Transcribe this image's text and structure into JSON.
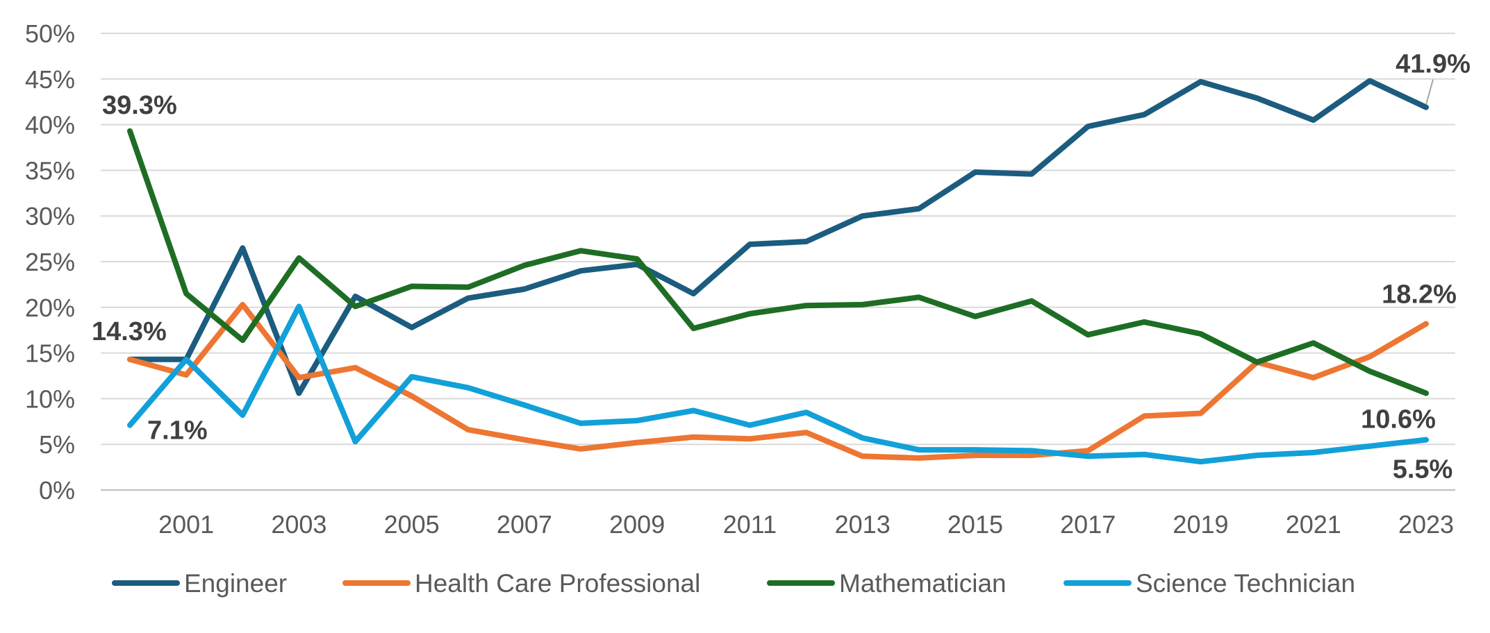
{
  "chart_data": {
    "type": "line",
    "x": [
      2000,
      2001,
      2002,
      2003,
      2004,
      2005,
      2006,
      2007,
      2008,
      2009,
      2010,
      2011,
      2012,
      2013,
      2014,
      2015,
      2016,
      2017,
      2018,
      2019,
      2020,
      2021,
      2022,
      2023
    ],
    "x_tick_labels": [
      "2001",
      "2003",
      "2005",
      "2007",
      "2009",
      "2011",
      "2013",
      "2015",
      "2017",
      "2019",
      "2021",
      "2023"
    ],
    "y_tick_labels": [
      "0%",
      "5%",
      "10%",
      "15%",
      "20%",
      "25%",
      "30%",
      "35%",
      "40%",
      "45%",
      "50%"
    ],
    "ylim": [
      0,
      50
    ],
    "y_unit": "%",
    "grid": true,
    "legend_position": "bottom",
    "series": [
      {
        "name": "Engineer",
        "color": "#1b5c7f",
        "values": [
          14.3,
          14.3,
          26.5,
          10.6,
          21.2,
          17.8,
          21.0,
          22.0,
          24.0,
          24.7,
          21.5,
          26.9,
          27.2,
          30.0,
          30.8,
          34.8,
          34.6,
          39.8,
          41.1,
          44.7,
          42.9,
          40.5,
          44.8,
          41.9
        ]
      },
      {
        "name": "Health Care Professional",
        "color": "#ed7632",
        "values": [
          14.3,
          12.6,
          20.3,
          12.3,
          13.4,
          10.3,
          6.6,
          5.5,
          4.5,
          5.2,
          5.8,
          5.6,
          6.3,
          3.7,
          3.5,
          3.8,
          3.8,
          4.3,
          8.1,
          8.4,
          14.0,
          12.3,
          14.6,
          18.2
        ]
      },
      {
        "name": "Mathematician",
        "color": "#1e6d24",
        "values": [
          39.3,
          21.5,
          16.4,
          25.4,
          20.1,
          22.3,
          22.2,
          24.6,
          26.2,
          25.3,
          17.7,
          19.3,
          20.2,
          20.3,
          21.1,
          19.0,
          20.7,
          17.0,
          18.4,
          17.1,
          14.0,
          16.1,
          13.0,
          10.6
        ]
      },
      {
        "name": "Science Technician",
        "color": "#12a0d8",
        "values": [
          7.1,
          14.3,
          8.2,
          20.1,
          5.3,
          12.4,
          11.2,
          9.3,
          7.3,
          7.6,
          8.7,
          7.1,
          8.5,
          5.7,
          4.4,
          4.4,
          4.3,
          3.7,
          3.9,
          3.1,
          3.8,
          4.1,
          4.8,
          5.5
        ]
      }
    ],
    "data_labels": [
      {
        "series": 2,
        "index": 0,
        "text": "39.3%"
      },
      {
        "series": 0,
        "index": 0,
        "text": "14.3%"
      },
      {
        "series": 3,
        "index": 0,
        "text": "7.1%"
      },
      {
        "series": 0,
        "index": 23,
        "text": "41.9%"
      },
      {
        "series": 1,
        "index": 23,
        "text": "18.2%"
      },
      {
        "series": 2,
        "index": 23,
        "text": "10.6%"
      },
      {
        "series": 3,
        "index": 23,
        "text": "5.5%"
      }
    ]
  }
}
